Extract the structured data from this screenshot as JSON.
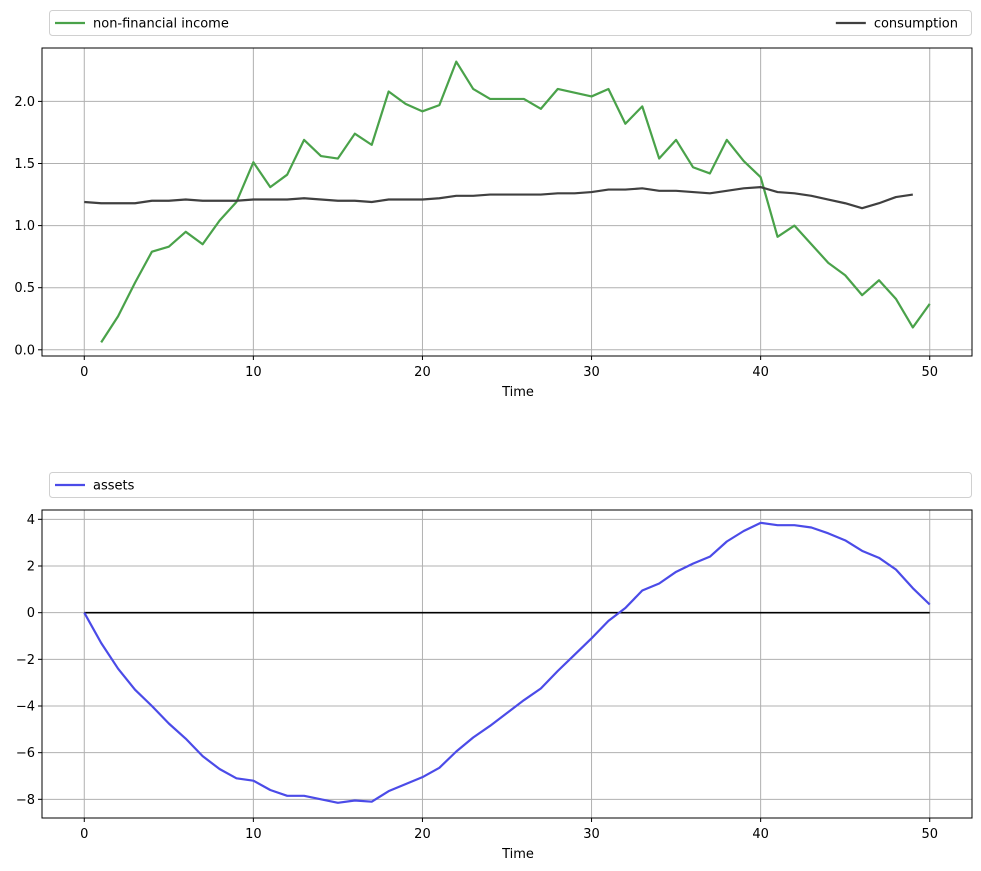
{
  "chart_data": [
    {
      "type": "line",
      "xlabel": "Time",
      "ylabel": "",
      "xlim": [
        -2.5,
        52.5
      ],
      "ylim": [
        -0.05,
        2.43
      ],
      "xticks": [
        0,
        10,
        20,
        30,
        40,
        50
      ],
      "yticks": [
        0.0,
        0.5,
        1.0,
        1.5,
        2.0
      ],
      "ytick_labels": [
        "0.0",
        "0.5",
        "1.0",
        "1.5",
        "2.0"
      ],
      "grid": true,
      "legend": {
        "placement": "above-plot, expanded across width"
      },
      "series": [
        {
          "name": "non-financial income",
          "color": "#4aa24a",
          "x": [
            1,
            2,
            3,
            4,
            5,
            6,
            7,
            8,
            9,
            10,
            11,
            12,
            13,
            14,
            15,
            16,
            17,
            18,
            19,
            20,
            21,
            22,
            23,
            24,
            25,
            26,
            27,
            28,
            29,
            30,
            31,
            32,
            33,
            34,
            35,
            36,
            37,
            38,
            39,
            40,
            41,
            42,
            43,
            44,
            45,
            46,
            47,
            48,
            49,
            50
          ],
          "y": [
            0.06,
            0.27,
            0.54,
            0.79,
            0.83,
            0.95,
            0.85,
            1.04,
            1.19,
            1.51,
            1.31,
            1.41,
            1.69,
            1.56,
            1.54,
            1.74,
            1.65,
            2.08,
            1.98,
            1.92,
            1.97,
            2.32,
            2.1,
            2.02,
            2.02,
            2.02,
            1.94,
            2.1,
            2.07,
            2.04,
            2.1,
            1.82,
            1.96,
            1.54,
            1.69,
            1.47,
            1.42,
            1.69,
            1.52,
            1.39,
            0.91,
            1.0,
            0.85,
            0.7,
            0.6,
            0.44,
            0.56,
            0.41,
            0.18,
            0.37
          ]
        },
        {
          "name": "consumption",
          "color": "#404040",
          "x": [
            0,
            1,
            2,
            3,
            4,
            5,
            6,
            7,
            8,
            9,
            10,
            11,
            12,
            13,
            14,
            15,
            16,
            17,
            18,
            19,
            20,
            21,
            22,
            23,
            24,
            25,
            26,
            27,
            28,
            29,
            30,
            31,
            32,
            33,
            34,
            35,
            36,
            37,
            38,
            39,
            40,
            41,
            42,
            43,
            44,
            45,
            46,
            47,
            48,
            49
          ],
          "y": [
            1.19,
            1.18,
            1.18,
            1.18,
            1.2,
            1.2,
            1.21,
            1.2,
            1.2,
            1.2,
            1.21,
            1.21,
            1.21,
            1.22,
            1.21,
            1.2,
            1.2,
            1.19,
            1.21,
            1.21,
            1.21,
            1.22,
            1.24,
            1.24,
            1.25,
            1.25,
            1.25,
            1.25,
            1.26,
            1.26,
            1.27,
            1.29,
            1.29,
            1.3,
            1.28,
            1.28,
            1.27,
            1.26,
            1.28,
            1.3,
            1.31,
            1.27,
            1.26,
            1.24,
            1.21,
            1.18,
            1.14,
            1.18,
            1.23,
            1.25
          ]
        }
      ]
    },
    {
      "type": "line",
      "xlabel": "Time",
      "ylabel": "",
      "xlim": [
        -2.5,
        52.5
      ],
      "ylim": [
        -8.8,
        4.4
      ],
      "xticks": [
        0,
        10,
        20,
        30,
        40,
        50
      ],
      "yticks": [
        -8,
        -6,
        -4,
        -2,
        0,
        2,
        4
      ],
      "ytick_labels": [
        "−8",
        "−6",
        "−4",
        "−2",
        "0",
        "2",
        "4"
      ],
      "grid": true,
      "legend": {
        "placement": "above-plot, expanded across width"
      },
      "reference_line": {
        "y": 0,
        "x_from": 0,
        "x_to": 50,
        "color": "#000000"
      },
      "series": [
        {
          "name": "assets",
          "color": "#4b4be8",
          "x": [
            0,
            1,
            2,
            3,
            4,
            5,
            6,
            7,
            8,
            9,
            10,
            11,
            12,
            13,
            14,
            15,
            16,
            17,
            18,
            19,
            20,
            21,
            22,
            23,
            24,
            25,
            26,
            27,
            28,
            29,
            30,
            31,
            32,
            33,
            34,
            35,
            36,
            37,
            38,
            39,
            40,
            41,
            42,
            43,
            44,
            45,
            46,
            47,
            48,
            49,
            50
          ],
          "y": [
            0,
            -1.3,
            -2.4,
            -3.3,
            -4.0,
            -4.75,
            -5.4,
            -6.15,
            -6.7,
            -7.1,
            -7.2,
            -7.6,
            -7.85,
            -7.85,
            -8.0,
            -8.15,
            -8.05,
            -8.1,
            -7.65,
            -7.35,
            -7.05,
            -6.65,
            -5.95,
            -5.35,
            -4.85,
            -4.3,
            -3.75,
            -3.25,
            -2.5,
            -1.8,
            -1.1,
            -0.35,
            0.2,
            0.95,
            1.25,
            1.75,
            2.1,
            2.4,
            3.05,
            3.5,
            3.85,
            3.75,
            3.75,
            3.65,
            3.4,
            3.1,
            2.65,
            2.35,
            1.85,
            1.05,
            0.35
          ]
        }
      ]
    }
  ]
}
